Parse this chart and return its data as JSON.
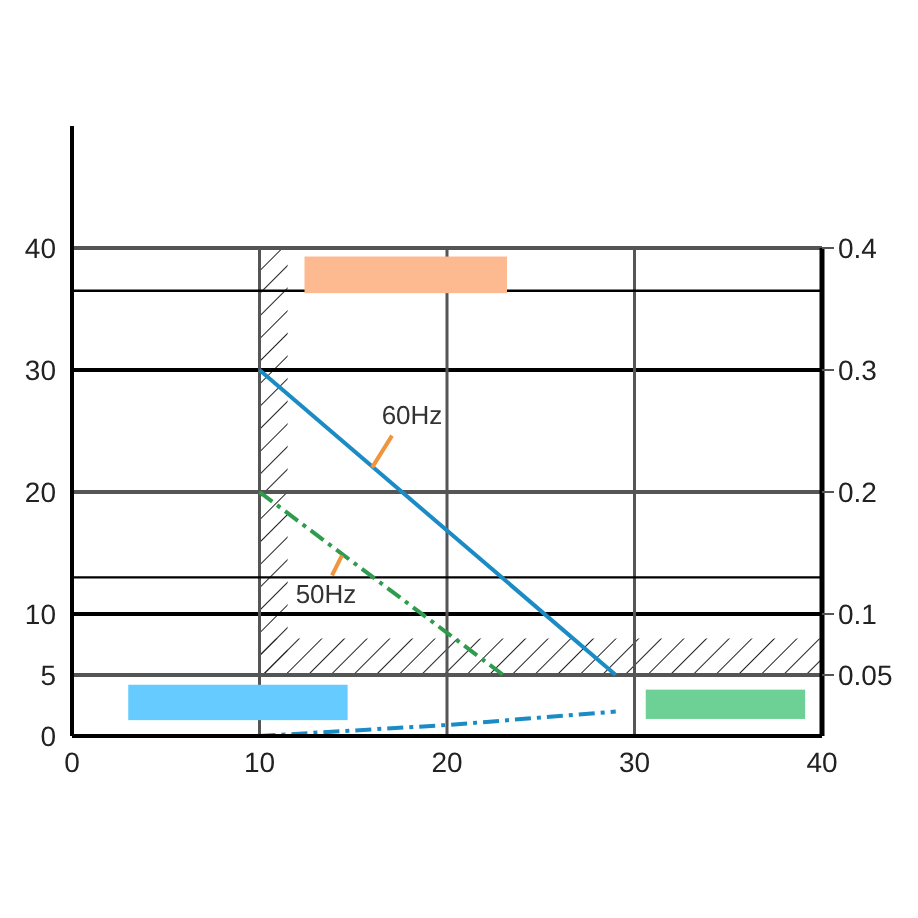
{
  "chart_data": {
    "type": "line",
    "series": [
      {
        "color": "#1a8bc4",
        "x": [
          10,
          29
        ],
        "values": [
          30,
          5
        ],
        "line_style": "solid"
      },
      {
        "color": "#2e9b4e",
        "x": [
          10,
          23
        ],
        "values": [
          20,
          5
        ],
        "line_style": "dashed"
      },
      {
        "color": "#1a8bc4",
        "x": [
          10,
          20,
          29
        ],
        "values": [
          0,
          0.9,
          2
        ],
        "line_style": "dashed"
      }
    ],
    "xlim": [
      0,
      40
    ],
    "xticks": [
      0,
      10,
      20,
      30,
      40
    ],
    "ylim": [
      0,
      50
    ],
    "yticks": [
      0,
      5,
      10,
      20,
      30,
      40
    ],
    "y2lim": [
      0,
      0.5
    ],
    "y2ticks": [
      0.05,
      0.1,
      0.2,
      0.3,
      0.4
    ],
    "ref_lines": [
      {
        "axis": "y",
        "value": 36.5,
        "color": "#000000"
      },
      {
        "axis": "y",
        "value": 13,
        "color": "#000000"
      }
    ],
    "bands": [
      {
        "axis": "x",
        "from": 10,
        "to": 11.5
      },
      {
        "axis": "y",
        "from": 5,
        "to": 8
      }
    ],
    "annotations": [
      {
        "text": "60Hz",
        "x": 16,
        "y": 22
      },
      {
        "text": "50Hz",
        "x": 14.4,
        "y": 14.8
      }
    ],
    "grid": true,
    "marker": "none"
  }
}
